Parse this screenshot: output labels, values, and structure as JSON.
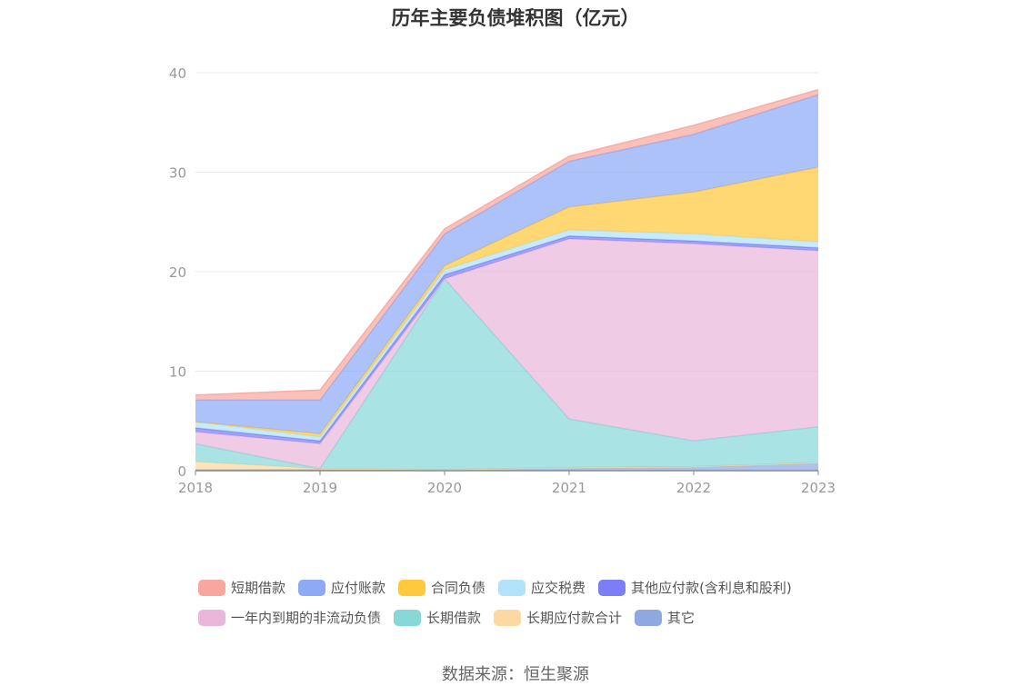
{
  "source": "数据来源：恒生聚源",
  "chart_data": {
    "type": "area",
    "title": "历年主要负债堆积图（亿元）",
    "xlabel": "",
    "ylabel": "",
    "categories": [
      "2018",
      "2019",
      "2020",
      "2021",
      "2022",
      "2023"
    ],
    "ylim": [
      0,
      40
    ],
    "yticks": [
      0,
      10,
      20,
      30,
      40
    ],
    "grid": true,
    "stacked": true,
    "legend_position": "bottom",
    "series": [
      {
        "name": "其它",
        "color": "#8da9e0",
        "values": [
          0.1,
          0.1,
          0.1,
          0.3,
          0.4,
          0.8
        ]
      },
      {
        "name": "长期应付款合计",
        "color": "#fcd9a0",
        "values": [
          0.8,
          0.1,
          0.0,
          0.0,
          0.0,
          0.0
        ]
      },
      {
        "name": "长期借款",
        "color": "#88d8d8",
        "values": [
          1.8,
          0.0,
          19.2,
          4.9,
          2.6,
          3.6
        ]
      },
      {
        "name": "一年内到期的非流动负债",
        "color": "#eab7db",
        "values": [
          1.2,
          2.5,
          0.0,
          18.1,
          19.8,
          17.7
        ]
      },
      {
        "name": "其他应付款(含利息和股利)",
        "color": "#7b7ef4",
        "values": [
          0.4,
          0.3,
          0.4,
          0.3,
          0.3,
          0.3
        ]
      },
      {
        "name": "应交税费",
        "color": "#b3e3fb",
        "values": [
          0.6,
          0.4,
          0.5,
          0.6,
          0.7,
          0.6
        ]
      },
      {
        "name": "合同负债",
        "color": "#ffc83d",
        "values": [
          0.0,
          0.3,
          0.4,
          2.3,
          4.2,
          7.5
        ]
      },
      {
        "name": "应付账款",
        "color": "#8eaaf7",
        "values": [
          2.2,
          3.4,
          3.2,
          4.6,
          5.8,
          7.3
        ]
      },
      {
        "name": "短期借款",
        "color": "#f8a7a0",
        "values": [
          0.5,
          1.0,
          0.5,
          0.5,
          0.9,
          0.5
        ]
      }
    ],
    "legend_order": [
      "短期借款",
      "应付账款",
      "合同负债",
      "应交税费",
      "其他应付款(含利息和股利)",
      "一年内到期的非流动负债",
      "长期借款",
      "长期应付款合计",
      "其它"
    ]
  }
}
